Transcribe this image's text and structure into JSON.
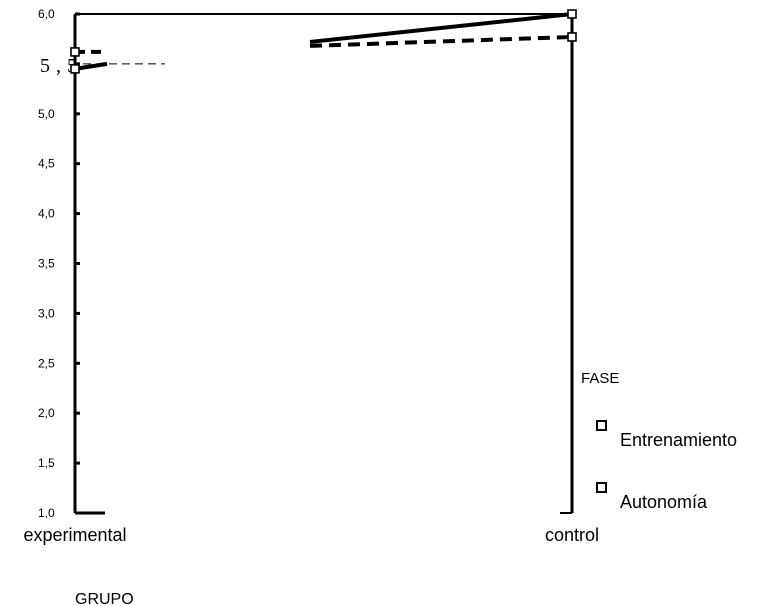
{
  "chart_data": {
    "type": "line",
    "xlabel": "GRUPO",
    "categories": [
      "experimental",
      "control"
    ],
    "ylim": [
      1.0,
      6.0
    ],
    "y_ticks": [
      "1,0",
      "1,5",
      "2,0",
      "2,5",
      "3,0",
      "3,5",
      "4,0",
      "4,5",
      "5,0",
      "5,5",
      "6,0"
    ],
    "legend_title": "FASE",
    "legend_position": "right",
    "series": [
      {
        "name": "Entrenamiento",
        "style": "solid",
        "values": [
          5.45,
          6.0
        ]
      },
      {
        "name": "Autonomía",
        "style": "dashed",
        "values": [
          5.62,
          5.77
        ]
      }
    ]
  }
}
